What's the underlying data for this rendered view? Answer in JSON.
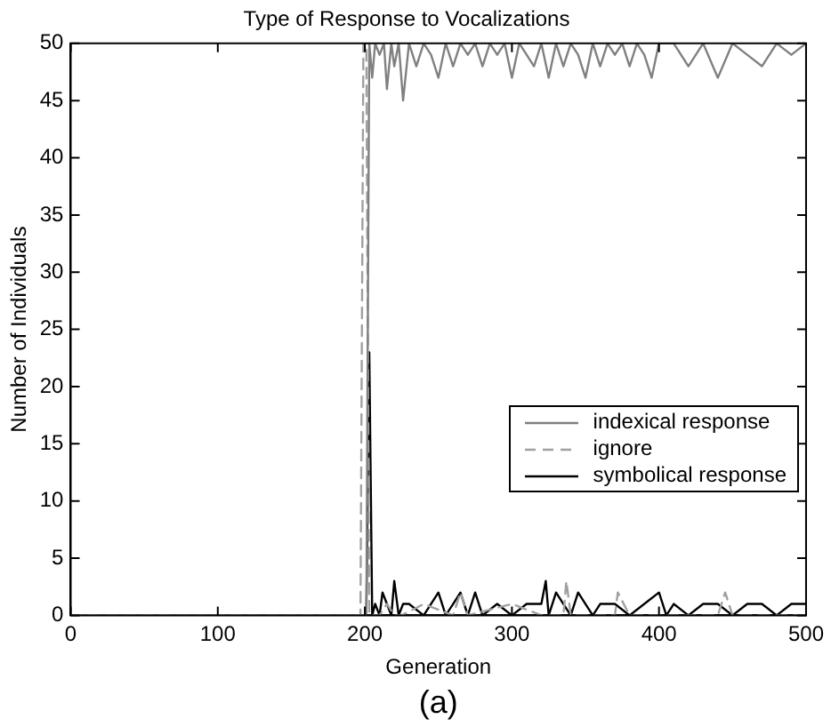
{
  "chart_data": {
    "type": "line",
    "title": "Type of Response to Vocalizations",
    "xlabel": "Generation",
    "ylabel": "Number of Individuals",
    "annotations": [
      "(a)"
    ],
    "xlim": [
      0,
      500
    ],
    "xticks": [
      0,
      100,
      200,
      300,
      400,
      500
    ],
    "ylim": [
      0,
      50
    ],
    "yticks": [
      0,
      5,
      10,
      15,
      20,
      25,
      30,
      35,
      40,
      45,
      50
    ],
    "grid": false,
    "legend": "right",
    "marker": "none",
    "series": [
      {
        "name": "indexical response",
        "color": "#808080",
        "line_style": "solid",
        "x": [
          0,
          201,
          203,
          205,
          207,
          210,
          213,
          215,
          218,
          220,
          223,
          226,
          230,
          235,
          240,
          245,
          250,
          255,
          260,
          265,
          270,
          275,
          280,
          285,
          290,
          295,
          300,
          305,
          310,
          315,
          320,
          325,
          330,
          335,
          340,
          345,
          350,
          355,
          360,
          365,
          370,
          375,
          380,
          385,
          390,
          395,
          400,
          410,
          420,
          430,
          440,
          450,
          460,
          470,
          480,
          490,
          500
        ],
        "values": [
          0,
          0,
          50,
          47,
          50,
          49,
          50,
          46,
          50,
          48,
          50,
          45,
          50,
          48,
          50,
          49,
          47,
          50,
          48,
          50,
          49,
          50,
          48,
          50,
          49,
          50,
          47,
          50,
          49,
          48,
          50,
          47,
          50,
          48,
          50,
          49,
          47,
          50,
          48,
          50,
          49,
          50,
          48,
          50,
          49,
          47,
          50,
          50,
          48,
          50,
          47,
          50,
          49,
          48,
          50,
          49,
          50
        ]
      },
      {
        "name": "ignore",
        "color": "#a0a0a0",
        "line_style": "dashed",
        "x": [
          0,
          197,
          199,
          201,
          203,
          210,
          215,
          220,
          225,
          240,
          260,
          265,
          270,
          300,
          320,
          335,
          337,
          340,
          360,
          370,
          372,
          380,
          420,
          440,
          445,
          450,
          480,
          500
        ],
        "values": [
          0,
          0,
          50,
          50,
          0,
          0,
          1,
          0,
          0,
          1,
          0,
          2,
          0,
          1,
          0,
          0,
          3,
          0,
          0,
          0,
          2,
          0,
          0,
          0,
          2,
          0,
          0,
          0
        ]
      },
      {
        "name": "symbolical response",
        "color": "#000000",
        "line_style": "solid",
        "x": [
          0,
          201,
          203,
          205,
          207,
          210,
          212,
          215,
          218,
          220,
          223,
          226,
          230,
          240,
          250,
          255,
          260,
          265,
          270,
          275,
          280,
          290,
          300,
          310,
          320,
          323,
          325,
          330,
          335,
          340,
          345,
          350,
          355,
          360,
          370,
          380,
          390,
          400,
          405,
          410,
          420,
          430,
          440,
          450,
          460,
          470,
          480,
          490,
          500
        ],
        "values": [
          0,
          0,
          23,
          0,
          1,
          0,
          2,
          1,
          0,
          3,
          0,
          1,
          1,
          0,
          2,
          0,
          1,
          2,
          0,
          2,
          0,
          1,
          0,
          1,
          1,
          3,
          0,
          2,
          1,
          0,
          2,
          1,
          0,
          1,
          1,
          0,
          1,
          2,
          0,
          1,
          0,
          1,
          1,
          0,
          1,
          1,
          0,
          1,
          1
        ]
      }
    ]
  }
}
